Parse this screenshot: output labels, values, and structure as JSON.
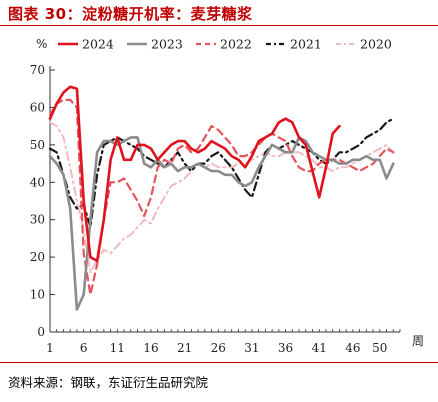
{
  "title": "图表 30：淀粉糖开机率：麦芽糖浆",
  "source": "资料来源：钢联，东证衍生品研究院",
  "chart_data": {
    "type": "line",
    "y_unit": "%",
    "x_unit": "周",
    "ylim": [
      0,
      70
    ],
    "yticks": [
      0,
      10,
      20,
      30,
      40,
      50,
      60,
      70
    ],
    "xlim": [
      1,
      53
    ],
    "xticks": [
      1,
      6,
      11,
      16,
      21,
      26,
      31,
      36,
      41,
      46,
      50
    ],
    "legend_position": "top",
    "grid": false,
    "series": [
      {
        "name": "2024",
        "color": "#e0121d",
        "dash": "",
        "width": 2.6,
        "x": [
          1,
          2,
          3,
          4,
          5,
          6,
          7,
          8,
          9,
          10,
          11,
          12,
          13,
          14,
          15,
          16,
          17,
          18,
          19,
          20,
          21,
          22,
          23,
          24,
          25,
          26,
          27,
          28,
          29,
          30,
          31,
          32,
          33,
          34,
          35,
          36,
          37,
          38,
          39,
          40,
          41,
          42,
          43,
          44
        ],
        "y": [
          57,
          61,
          64,
          65.5,
          65,
          35,
          20,
          19,
          30,
          46,
          52,
          46,
          46,
          50,
          50,
          49,
          46,
          48,
          50,
          51,
          51,
          49,
          48,
          49,
          51,
          50,
          49,
          47,
          46,
          44,
          47,
          51,
          52,
          53,
          56,
          57,
          56,
          52,
          50,
          43,
          36,
          44,
          53,
          55
        ]
      },
      {
        "name": "2023",
        "color": "#8c8c8c",
        "dash": "",
        "width": 2.6,
        "x": [
          1,
          2,
          3,
          4,
          5,
          6,
          7,
          8,
          9,
          10,
          11,
          12,
          13,
          14,
          15,
          16,
          17,
          18,
          19,
          20,
          21,
          22,
          23,
          24,
          25,
          26,
          27,
          28,
          29,
          30,
          31,
          32,
          33,
          34,
          35,
          36,
          37,
          38,
          39,
          40,
          41,
          42,
          43,
          44,
          45,
          46,
          47,
          48,
          49,
          50,
          51,
          52
        ],
        "y": [
          47,
          45,
          42,
          33,
          6,
          10,
          30,
          48,
          51,
          51,
          50,
          51,
          52,
          52,
          45,
          44,
          46,
          44,
          45,
          43,
          44,
          44,
          45,
          44,
          43,
          43,
          42,
          42,
          40,
          39,
          40,
          44,
          47,
          50,
          49,
          48,
          48,
          52,
          51,
          48,
          47,
          46,
          46,
          45,
          45,
          46,
          46,
          47,
          46,
          46,
          41,
          45
        ]
      },
      {
        "name": "2022",
        "color": "#e8525c",
        "dash": "7,5",
        "width": 2.2,
        "x": [
          1,
          2,
          3,
          4,
          5,
          6,
          7,
          8,
          9,
          10,
          11,
          12,
          13,
          14,
          15,
          16,
          17,
          18,
          19,
          20,
          21,
          22,
          23,
          24,
          25,
          26,
          27,
          28,
          29,
          30,
          31,
          32,
          33,
          34,
          35,
          36,
          37,
          38,
          39,
          40,
          41,
          42,
          43,
          44,
          45,
          46,
          47,
          48,
          49,
          50,
          51,
          52
        ],
        "y": [
          58,
          61,
          62,
          62,
          60,
          21,
          10,
          18,
          30,
          40,
          40,
          41,
          38,
          35,
          31,
          36,
          44,
          46,
          45,
          49,
          50,
          48,
          49,
          52,
          55,
          54,
          52,
          50,
          47,
          47,
          48,
          50,
          52,
          53,
          52,
          51,
          47,
          44,
          43,
          43,
          45,
          46,
          46,
          46,
          45,
          44,
          43,
          44,
          45,
          47,
          49,
          48
        ]
      },
      {
        "name": "2021",
        "color": "#1a1a1a",
        "dash": "8,4,2,4",
        "width": 2.2,
        "x": [
          1,
          2,
          3,
          4,
          5,
          6,
          7,
          8,
          9,
          10,
          11,
          12,
          13,
          14,
          15,
          16,
          17,
          18,
          19,
          20,
          21,
          22,
          23,
          24,
          25,
          26,
          27,
          28,
          29,
          30,
          31,
          32,
          33,
          34,
          35,
          36,
          37,
          38,
          39,
          40,
          41,
          42,
          43,
          44,
          45,
          46,
          47,
          48,
          49,
          50,
          51,
          52
        ],
        "y": [
          49,
          48,
          42,
          36,
          33,
          34,
          28,
          42,
          50,
          51,
          52,
          51,
          50,
          49,
          47,
          46,
          45,
          44,
          46,
          48,
          45,
          43,
          45,
          45,
          47,
          48,
          46,
          44,
          41,
          38,
          36,
          42,
          48,
          50,
          49,
          50,
          51,
          50,
          49,
          48,
          46,
          45,
          46,
          48,
          48,
          49,
          50,
          52,
          53,
          54,
          56,
          57
        ]
      },
      {
        "name": "2020",
        "color": "#f0bcc2",
        "dash": "8,4,2,4",
        "width": 2.0,
        "x": [
          1,
          2,
          3,
          4,
          5,
          6,
          7,
          8,
          9,
          10,
          11,
          12,
          13,
          14,
          15,
          16,
          17,
          18,
          19,
          20,
          21,
          22,
          23,
          24,
          25,
          26,
          27,
          28,
          29,
          30,
          31,
          32,
          33,
          34,
          35,
          36,
          37,
          38,
          39,
          40,
          41,
          42,
          43,
          44,
          45,
          46,
          47,
          48,
          49,
          50,
          51,
          52
        ],
        "y": [
          56,
          55,
          52,
          44,
          35,
          27,
          16,
          19,
          22,
          21,
          23,
          25,
          26,
          28,
          30,
          29,
          33,
          36,
          39,
          40,
          41,
          43,
          45,
          44,
          45,
          44,
          44,
          44,
          45,
          45,
          46,
          47,
          48,
          47,
          47,
          48,
          48,
          48,
          47,
          46,
          44,
          44,
          43,
          44,
          44,
          45,
          46,
          47,
          48,
          49,
          50,
          48
        ]
      }
    ]
  }
}
